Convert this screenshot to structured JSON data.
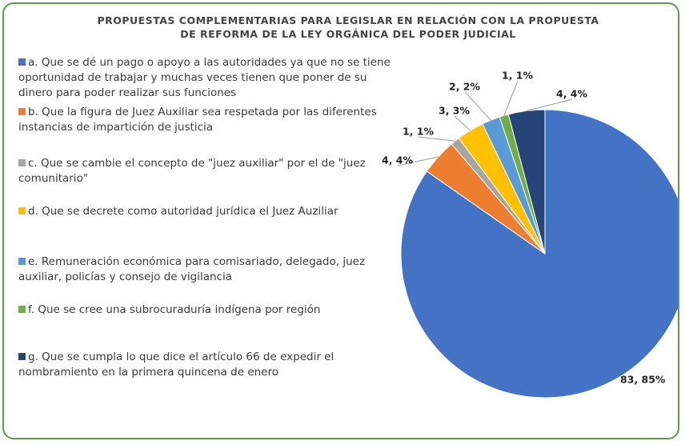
{
  "chart_data": {
    "type": "pie",
    "title": "PROPUESTAS COMPLEMENTARIAS PARA LEGISLAR EN RELACIÓN CON LA PROPUESTA DE REFORMA DE LA LEY ORGÁNICA DEL PODER JUDICIAL",
    "categories": [
      "a. Que se dé un pago o apoyo a las autoridades ya que no se tiene oportunidad de trabajar y muchas veces tienen que poner de su dinero para poder realizar sus funciones",
      "b. Que la figura de Juez Auxiliar sea respetada por las diferentes instancias de impartición de justicia",
      "c. Que se cambie el concepto de \"juez auxiliar\" por el de \"juez comunitario\"",
      "d. Que se decrete como autoridad jurídica el Juez Auziliar",
      "e. Remuneración económica para comisariado, delegado, juez auxiliar, policías y consejo de vigilancia",
      "f. Que se cree una subrocuraduría indígena por región",
      "g. Que se cumpla lo que dice el artículo 66 de expedir el nombramiento en la primera quincena de enero"
    ],
    "values": [
      83,
      4,
      1,
      3,
      2,
      1,
      4
    ],
    "value_labels": [
      "83, 85%",
      "4, 4%",
      "1, 1%",
      "3, 3%",
      "2, 2%",
      "1, 1%",
      "4, 4%"
    ],
    "colors": [
      "#4472c4",
      "#ed7d31",
      "#a5a5a5",
      "#ffc000",
      "#5b9bd5",
      "#70ad47",
      "#264478"
    ],
    "legend": "left"
  }
}
